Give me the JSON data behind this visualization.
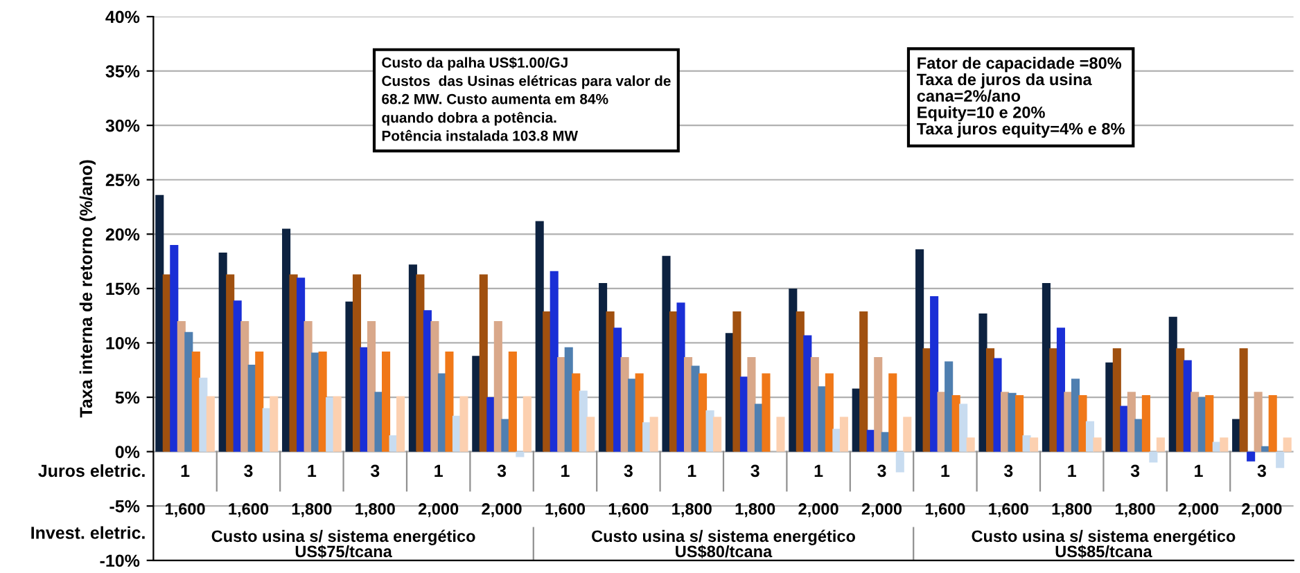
{
  "chart_data": {
    "type": "bar",
    "ylabel": "Taxa interna de retorno (%/ano)",
    "categories": [
      "1",
      "3",
      "1",
      "3",
      "1",
      "3",
      "1",
      "3",
      "1",
      "3",
      "1",
      "3",
      "1",
      "3",
      "1",
      "3",
      "1",
      "3"
    ],
    "series": [
      {
        "color": "#0d2240",
        "values": [
          23.6,
          18.3,
          20.5,
          13.8,
          17.2,
          8.8,
          21.2,
          15.5,
          18.0,
          10.9,
          15.0,
          5.8,
          18.6,
          12.7,
          15.5,
          8.2,
          12.4,
          3.0
        ]
      },
      {
        "color": "#a0500f",
        "values": [
          16.3,
          16.3,
          16.3,
          16.3,
          16.3,
          16.3,
          12.9,
          12.9,
          12.9,
          12.9,
          12.9,
          12.9,
          9.5,
          9.5,
          9.5,
          9.5,
          9.5,
          9.5
        ]
      },
      {
        "color": "#1a2fd6",
        "values": [
          19.0,
          13.9,
          16.0,
          9.6,
          13.0,
          5.0,
          16.6,
          11.4,
          13.7,
          6.9,
          10.7,
          2.0,
          14.3,
          8.6,
          11.4,
          4.2,
          8.4,
          -0.9
        ]
      },
      {
        "color": "#d9a88a",
        "values": [
          12.0,
          12.0,
          12.0,
          12.0,
          12.0,
          12.0,
          8.7,
          8.7,
          8.7,
          8.7,
          8.7,
          8.7,
          5.5,
          5.5,
          5.5,
          5.5,
          5.5,
          5.5
        ]
      },
      {
        "color": "#4f7fb0",
        "values": [
          11.0,
          8.0,
          9.1,
          5.5,
          7.2,
          3.0,
          9.6,
          6.7,
          7.9,
          4.4,
          6.0,
          1.8,
          8.3,
          5.4,
          6.7,
          3.0,
          5.0,
          0.5
        ]
      },
      {
        "color": "#f07818",
        "values": [
          9.2,
          9.2,
          9.2,
          9.2,
          9.2,
          9.2,
          7.2,
          7.2,
          7.2,
          7.2,
          7.2,
          7.2,
          5.2,
          5.2,
          5.2,
          5.2,
          5.2,
          5.2
        ]
      },
      {
        "color": "#c8dcf0",
        "values": [
          6.8,
          4.0,
          5.0,
          1.5,
          3.3,
          -0.5,
          5.6,
          2.7,
          3.8,
          0.0,
          2.1,
          -1.9,
          4.4,
          1.5,
          2.8,
          -1.0,
          0.9,
          -1.5
        ]
      },
      {
        "color": "#fcd0b0",
        "values": [
          5.1,
          5.1,
          5.1,
          5.1,
          5.1,
          5.1,
          3.2,
          3.2,
          3.2,
          3.2,
          3.2,
          3.2,
          1.3,
          1.3,
          1.3,
          1.3,
          1.3,
          1.3
        ]
      }
    ],
    "ylim": [
      -10,
      40
    ],
    "yticks": [
      {
        "value": -10,
        "label": "-10%"
      },
      {
        "value": -5,
        "label": "-5%"
      },
      {
        "value": 0,
        "label": "0%"
      },
      {
        "value": 5,
        "label": "5%"
      },
      {
        "value": 10,
        "label": "10%"
      },
      {
        "value": 15,
        "label": "15%"
      },
      {
        "value": 20,
        "label": "20%"
      },
      {
        "value": 25,
        "label": "25%"
      },
      {
        "value": 30,
        "label": "30%"
      },
      {
        "value": 35,
        "label": "35%"
      },
      {
        "value": 40,
        "label": "40%"
      }
    ],
    "grid": "y",
    "annotations": [
      "Custo da palha US$1.00/GJ\nCustos  das Usinas elétricas para valor de\n68.2 MW. Custo aumenta em 84%\nquando dobra a potência.\nPotência instalada 103.8 MW",
      "Fator de capacidade =80%\nTaxa de juros da usina\ncana=2%/ano\nEquity=10 e 20%\nTaxa juros equity=4% e 8%",
      "Juros eletric.",
      "Invest. eletric.",
      "1,600",
      "1,600",
      "1,800",
      "1,800",
      "2,000",
      "2,000",
      "1,600",
      "1,600",
      "1,800",
      "1,800",
      "2,000",
      "2,000",
      "1,600",
      "1,600",
      "1,800",
      "1,800",
      "2,000",
      "2,000",
      "Custo usina s/ sistema energético\nUS$75/tcana",
      "Custo usina s/ sistema energético\nUS$80/tcana",
      "Custo usina s/ sistema energético\nUS$85/tcana"
    ]
  }
}
